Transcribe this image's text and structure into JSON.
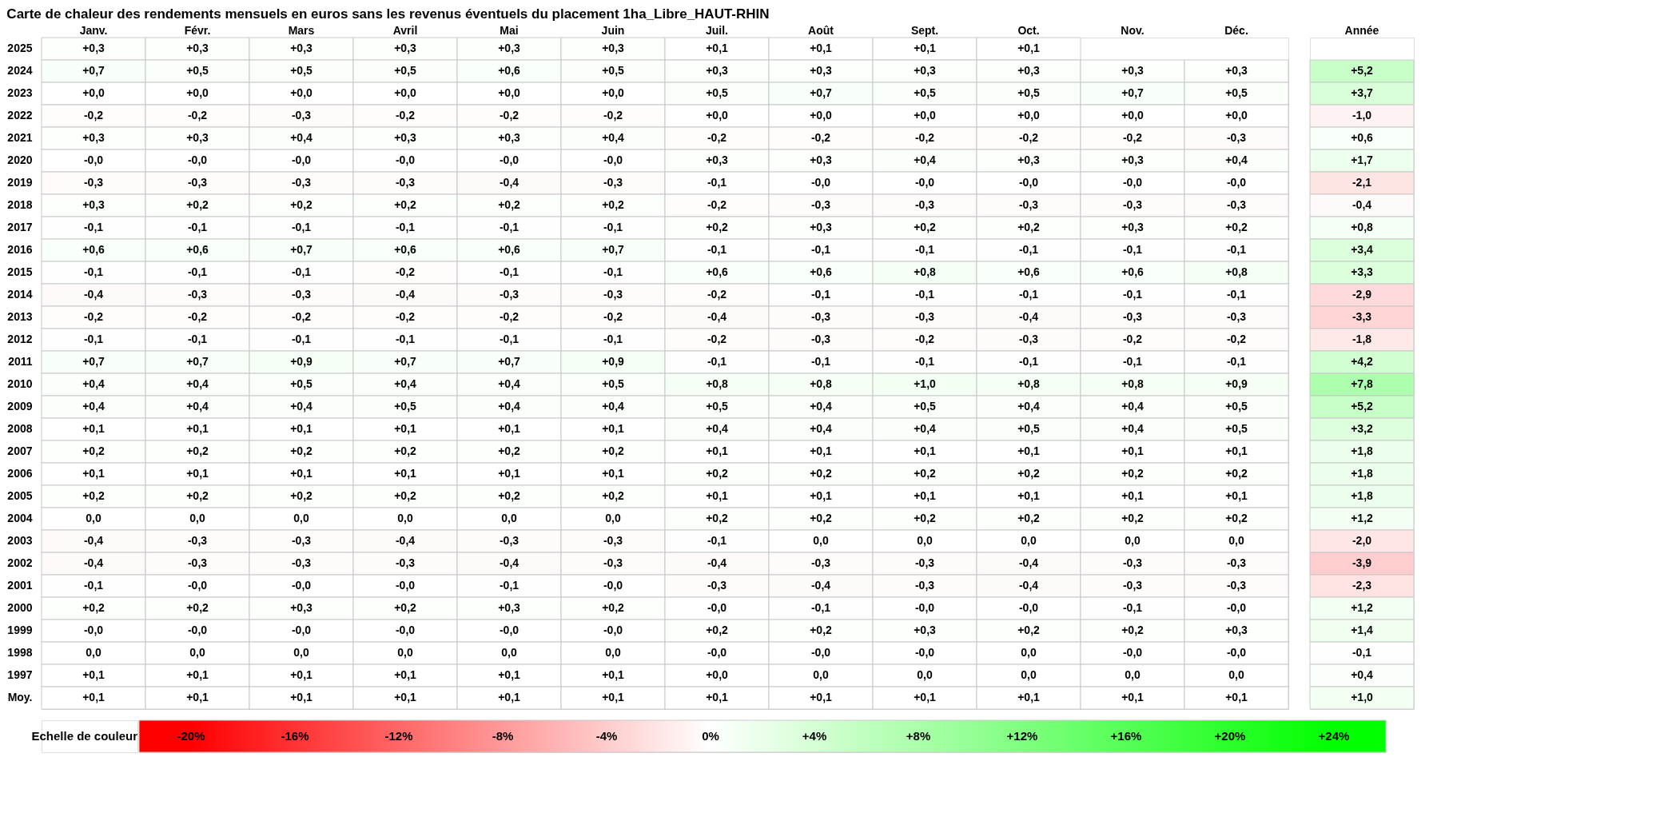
{
  "chart_data": {
    "type": "heatmap",
    "title": "Carte de chaleur des rendements mensuels en euros sans les revenus éventuels du placement 1ha_Libre_HAUT-RHIN",
    "clabel": "Echelle de couleur",
    "categories": [
      "Janv.",
      "Févr.",
      "Mars",
      "Avril",
      "Mai",
      "Juin",
      "Juil.",
      "Août",
      "Sept.",
      "Oct.",
      "Nov.",
      "Déc.",
      "Année"
    ],
    "y_categories": [
      "2025",
      "2024",
      "2023",
      "2022",
      "2021",
      "2020",
      "2019",
      "2018",
      "2017",
      "2016",
      "2015",
      "2014",
      "2013",
      "2012",
      "2011",
      "2010",
      "2009",
      "2008",
      "2007",
      "2006",
      "2005",
      "2004",
      "2003",
      "2002",
      "2001",
      "2000",
      "1999",
      "1998",
      "1997",
      "Moy."
    ],
    "clim": [
      -20,
      24
    ],
    "cticks": [
      {
        "value": -20,
        "label": "-20%"
      },
      {
        "value": -16,
        "label": "-16%"
      },
      {
        "value": -12,
        "label": "-12%"
      },
      {
        "value": -8,
        "label": "-8%"
      },
      {
        "value": -4,
        "label": "-4%"
      },
      {
        "value": 0,
        "label": "0%"
      },
      {
        "value": 4,
        "label": "+4%"
      },
      {
        "value": 8,
        "label": "+8%"
      },
      {
        "value": 12,
        "label": "+12%"
      },
      {
        "value": 16,
        "label": "+16%"
      },
      {
        "value": 20,
        "label": "+20%"
      },
      {
        "value": 24,
        "label": "+24%"
      }
    ],
    "cells": [
      [
        0.3,
        0.3,
        0.3,
        0.3,
        0.3,
        0.3,
        0.1,
        0.1,
        0.1,
        0.1,
        null,
        null,
        null
      ],
      [
        0.7,
        0.5,
        0.5,
        0.5,
        0.6,
        0.5,
        0.3,
        0.3,
        0.3,
        0.3,
        0.3,
        0.3,
        5.2
      ],
      [
        0.0,
        0.0,
        0.0,
        0.0,
        0.0,
        0.0,
        0.5,
        0.7,
        0.5,
        0.5,
        0.7,
        0.5,
        3.7
      ],
      [
        -0.2,
        -0.2,
        -0.3,
        -0.2,
        -0.2,
        -0.2,
        0.0,
        0.0,
        0.0,
        0.0,
        0.0,
        0.0,
        -1.0
      ],
      [
        0.3,
        0.3,
        0.4,
        0.3,
        0.3,
        0.4,
        -0.2,
        -0.2,
        -0.2,
        -0.2,
        -0.2,
        -0.3,
        0.6
      ],
      [
        0.0,
        0.0,
        0.0,
        0.0,
        0.0,
        0.0,
        0.3,
        0.3,
        0.4,
        0.3,
        0.3,
        0.4,
        1.7
      ],
      [
        -0.3,
        -0.3,
        -0.3,
        -0.3,
        -0.4,
        -0.3,
        -0.1,
        0.0,
        0.0,
        0.0,
        0.0,
        0.0,
        -2.1
      ],
      [
        0.3,
        0.2,
        0.2,
        0.2,
        0.2,
        0.2,
        -0.2,
        -0.3,
        -0.3,
        -0.3,
        -0.3,
        -0.3,
        -0.4
      ],
      [
        -0.1,
        -0.1,
        -0.1,
        -0.1,
        -0.1,
        -0.1,
        0.2,
        0.3,
        0.2,
        0.2,
        0.3,
        0.2,
        0.8
      ],
      [
        0.6,
        0.6,
        0.7,
        0.6,
        0.6,
        0.7,
        -0.1,
        -0.1,
        -0.1,
        -0.1,
        -0.1,
        -0.1,
        3.4
      ],
      [
        -0.1,
        -0.1,
        -0.1,
        -0.2,
        -0.1,
        -0.1,
        0.6,
        0.6,
        0.8,
        0.6,
        0.6,
        0.8,
        3.3
      ],
      [
        -0.4,
        -0.3,
        -0.3,
        -0.4,
        -0.3,
        -0.3,
        -0.2,
        -0.1,
        -0.1,
        -0.1,
        -0.1,
        -0.1,
        -2.9
      ],
      [
        -0.2,
        -0.2,
        -0.2,
        -0.2,
        -0.2,
        -0.2,
        -0.4,
        -0.3,
        -0.3,
        -0.4,
        -0.3,
        -0.3,
        -3.3
      ],
      [
        -0.1,
        -0.1,
        -0.1,
        -0.1,
        -0.1,
        -0.1,
        -0.2,
        -0.3,
        -0.2,
        -0.3,
        -0.2,
        -0.2,
        -1.8
      ],
      [
        0.7,
        0.7,
        0.9,
        0.7,
        0.7,
        0.9,
        -0.1,
        -0.1,
        -0.1,
        -0.1,
        -0.1,
        -0.1,
        4.2
      ],
      [
        0.4,
        0.4,
        0.5,
        0.4,
        0.4,
        0.5,
        0.8,
        0.8,
        1.0,
        0.8,
        0.8,
        0.9,
        7.8
      ],
      [
        0.4,
        0.4,
        0.4,
        0.5,
        0.4,
        0.4,
        0.5,
        0.4,
        0.5,
        0.4,
        0.4,
        0.5,
        5.2
      ],
      [
        0.1,
        0.1,
        0.1,
        0.1,
        0.1,
        0.1,
        0.4,
        0.4,
        0.4,
        0.5,
        0.4,
        0.5,
        3.2
      ],
      [
        0.2,
        0.2,
        0.2,
        0.2,
        0.2,
        0.2,
        0.1,
        0.1,
        0.1,
        0.1,
        0.1,
        0.1,
        1.8
      ],
      [
        0.1,
        0.1,
        0.1,
        0.1,
        0.1,
        0.1,
        0.2,
        0.2,
        0.2,
        0.2,
        0.2,
        0.2,
        1.8
      ],
      [
        0.2,
        0.2,
        0.2,
        0.2,
        0.2,
        0.2,
        0.1,
        0.1,
        0.1,
        0.1,
        0.1,
        0.1,
        1.8
      ],
      [
        0.0,
        0.0,
        0.0,
        0.0,
        0.0,
        0.0,
        0.2,
        0.2,
        0.2,
        0.2,
        0.2,
        0.2,
        1.2
      ],
      [
        -0.4,
        -0.3,
        -0.3,
        -0.4,
        -0.3,
        -0.3,
        -0.1,
        0.0,
        0.0,
        0.0,
        0.0,
        0.0,
        -2.0
      ],
      [
        -0.4,
        -0.3,
        -0.3,
        -0.3,
        -0.4,
        -0.3,
        -0.4,
        -0.3,
        -0.3,
        -0.4,
        -0.3,
        -0.3,
        -3.9
      ],
      [
        -0.1,
        0.0,
        0.0,
        0.0,
        -0.1,
        0.0,
        -0.3,
        -0.4,
        -0.3,
        -0.4,
        -0.3,
        -0.3,
        -2.3
      ],
      [
        0.2,
        0.2,
        0.3,
        0.2,
        0.3,
        0.2,
        0.0,
        -0.1,
        0.0,
        0.0,
        -0.1,
        0.0,
        1.2
      ],
      [
        0.0,
        0.0,
        0.0,
        0.0,
        0.0,
        0.0,
        0.2,
        0.2,
        0.3,
        0.2,
        0.2,
        0.3,
        1.4
      ],
      [
        0.0,
        0.0,
        0.0,
        0.0,
        0.0,
        0.0,
        0.0,
        0.0,
        0.0,
        0.0,
        0.0,
        0.0,
        -0.1
      ],
      [
        0.1,
        0.1,
        0.1,
        0.1,
        0.1,
        0.1,
        0.0,
        0.0,
        0.0,
        0.0,
        0.0,
        0.0,
        0.4
      ],
      [
        0.1,
        0.1,
        0.1,
        0.1,
        0.1,
        0.1,
        0.1,
        0.1,
        0.1,
        0.1,
        0.1,
        0.1,
        1.0
      ]
    ],
    "cell_labels": [
      [
        "+0,3",
        "+0,3",
        "+0,3",
        "+0,3",
        "+0,3",
        "+0,3",
        "+0,1",
        "+0,1",
        "+0,1",
        "+0,1",
        null,
        null,
        null
      ],
      [
        "+0,7",
        "+0,5",
        "+0,5",
        "+0,5",
        "+0,6",
        "+0,5",
        "+0,3",
        "+0,3",
        "+0,3",
        "+0,3",
        "+0,3",
        "+0,3",
        "+5,2"
      ],
      [
        "+0,0",
        "+0,0",
        "+0,0",
        "+0,0",
        "+0,0",
        "+0,0",
        "+0,5",
        "+0,7",
        "+0,5",
        "+0,5",
        "+0,7",
        "+0,5",
        "+3,7"
      ],
      [
        "-0,2",
        "-0,2",
        "-0,3",
        "-0,2",
        "-0,2",
        "-0,2",
        "+0,0",
        "+0,0",
        "+0,0",
        "+0,0",
        "+0,0",
        "+0,0",
        "-1,0"
      ],
      [
        "+0,3",
        "+0,3",
        "+0,4",
        "+0,3",
        "+0,3",
        "+0,4",
        "-0,2",
        "-0,2",
        "-0,2",
        "-0,2",
        "-0,2",
        "-0,3",
        "+0,6"
      ],
      [
        "-0,0",
        "-0,0",
        "-0,0",
        "-0,0",
        "-0,0",
        "-0,0",
        "+0,3",
        "+0,3",
        "+0,4",
        "+0,3",
        "+0,3",
        "+0,4",
        "+1,7"
      ],
      [
        "-0,3",
        "-0,3",
        "-0,3",
        "-0,3",
        "-0,4",
        "-0,3",
        "-0,1",
        "-0,0",
        "-0,0",
        "-0,0",
        "-0,0",
        "-0,0",
        "-2,1"
      ],
      [
        "+0,3",
        "+0,2",
        "+0,2",
        "+0,2",
        "+0,2",
        "+0,2",
        "-0,2",
        "-0,3",
        "-0,3",
        "-0,3",
        "-0,3",
        "-0,3",
        "-0,4"
      ],
      [
        "-0,1",
        "-0,1",
        "-0,1",
        "-0,1",
        "-0,1",
        "-0,1",
        "+0,2",
        "+0,3",
        "+0,2",
        "+0,2",
        "+0,3",
        "+0,2",
        "+0,8"
      ],
      [
        "+0,6",
        "+0,6",
        "+0,7",
        "+0,6",
        "+0,6",
        "+0,7",
        "-0,1",
        "-0,1",
        "-0,1",
        "-0,1",
        "-0,1",
        "-0,1",
        "+3,4"
      ],
      [
        "-0,1",
        "-0,1",
        "-0,1",
        "-0,2",
        "-0,1",
        "-0,1",
        "+0,6",
        "+0,6",
        "+0,8",
        "+0,6",
        "+0,6",
        "+0,8",
        "+3,3"
      ],
      [
        "-0,4",
        "-0,3",
        "-0,3",
        "-0,4",
        "-0,3",
        "-0,3",
        "-0,2",
        "-0,1",
        "-0,1",
        "-0,1",
        "-0,1",
        "-0,1",
        "-2,9"
      ],
      [
        "-0,2",
        "-0,2",
        "-0,2",
        "-0,2",
        "-0,2",
        "-0,2",
        "-0,4",
        "-0,3",
        "-0,3",
        "-0,4",
        "-0,3",
        "-0,3",
        "-3,3"
      ],
      [
        "-0,1",
        "-0,1",
        "-0,1",
        "-0,1",
        "-0,1",
        "-0,1",
        "-0,2",
        "-0,3",
        "-0,2",
        "-0,3",
        "-0,2",
        "-0,2",
        "-1,8"
      ],
      [
        "+0,7",
        "+0,7",
        "+0,9",
        "+0,7",
        "+0,7",
        "+0,9",
        "-0,1",
        "-0,1",
        "-0,1",
        "-0,1",
        "-0,1",
        "-0,1",
        "+4,2"
      ],
      [
        "+0,4",
        "+0,4",
        "+0,5",
        "+0,4",
        "+0,4",
        "+0,5",
        "+0,8",
        "+0,8",
        "+1,0",
        "+0,8",
        "+0,8",
        "+0,9",
        "+7,8"
      ],
      [
        "+0,4",
        "+0,4",
        "+0,4",
        "+0,5",
        "+0,4",
        "+0,4",
        "+0,5",
        "+0,4",
        "+0,5",
        "+0,4",
        "+0,4",
        "+0,5",
        "+5,2"
      ],
      [
        "+0,1",
        "+0,1",
        "+0,1",
        "+0,1",
        "+0,1",
        "+0,1",
        "+0,4",
        "+0,4",
        "+0,4",
        "+0,5",
        "+0,4",
        "+0,5",
        "+3,2"
      ],
      [
        "+0,2",
        "+0,2",
        "+0,2",
        "+0,2",
        "+0,2",
        "+0,2",
        "+0,1",
        "+0,1",
        "+0,1",
        "+0,1",
        "+0,1",
        "+0,1",
        "+1,8"
      ],
      [
        "+0,1",
        "+0,1",
        "+0,1",
        "+0,1",
        "+0,1",
        "+0,1",
        "+0,2",
        "+0,2",
        "+0,2",
        "+0,2",
        "+0,2",
        "+0,2",
        "+1,8"
      ],
      [
        "+0,2",
        "+0,2",
        "+0,2",
        "+0,2",
        "+0,2",
        "+0,2",
        "+0,1",
        "+0,1",
        "+0,1",
        "+0,1",
        "+0,1",
        "+0,1",
        "+1,8"
      ],
      [
        "0,0",
        "0,0",
        "0,0",
        "0,0",
        "0,0",
        "0,0",
        "+0,2",
        "+0,2",
        "+0,2",
        "+0,2",
        "+0,2",
        "+0,2",
        "+1,2"
      ],
      [
        "-0,4",
        "-0,3",
        "-0,3",
        "-0,4",
        "-0,3",
        "-0,3",
        "-0,1",
        "0,0",
        "0,0",
        "0,0",
        "0,0",
        "0,0",
        "-2,0"
      ],
      [
        "-0,4",
        "-0,3",
        "-0,3",
        "-0,3",
        "-0,4",
        "-0,3",
        "-0,4",
        "-0,3",
        "-0,3",
        "-0,4",
        "-0,3",
        "-0,3",
        "-3,9"
      ],
      [
        "-0,1",
        "-0,0",
        "-0,0",
        "-0,0",
        "-0,1",
        "-0,0",
        "-0,3",
        "-0,4",
        "-0,3",
        "-0,4",
        "-0,3",
        "-0,3",
        "-2,3"
      ],
      [
        "+0,2",
        "+0,2",
        "+0,3",
        "+0,2",
        "+0,3",
        "+0,2",
        "-0,0",
        "-0,1",
        "-0,0",
        "-0,0",
        "-0,1",
        "-0,0",
        "+1,2"
      ],
      [
        "-0,0",
        "-0,0",
        "-0,0",
        "-0,0",
        "-0,0",
        "-0,0",
        "+0,2",
        "+0,2",
        "+0,3",
        "+0,2",
        "+0,2",
        "+0,3",
        "+1,4"
      ],
      [
        "0,0",
        "0,0",
        "0,0",
        "0,0",
        "0,0",
        "0,0",
        "-0,0",
        "-0,0",
        "-0,0",
        "0,0",
        "-0,0",
        "-0,0",
        "-0,1"
      ],
      [
        "+0,1",
        "+0,1",
        "+0,1",
        "+0,1",
        "+0,1",
        "+0,1",
        "+0,0",
        "0,0",
        "0,0",
        "0,0",
        "0,0",
        "0,0",
        "+0,4"
      ],
      [
        "+0,1",
        "+0,1",
        "+0,1",
        "+0,1",
        "+0,1",
        "+0,1",
        "+0,1",
        "+0,1",
        "+0,1",
        "+0,1",
        "+0,1",
        "+0,1",
        "+1,0"
      ]
    ]
  }
}
